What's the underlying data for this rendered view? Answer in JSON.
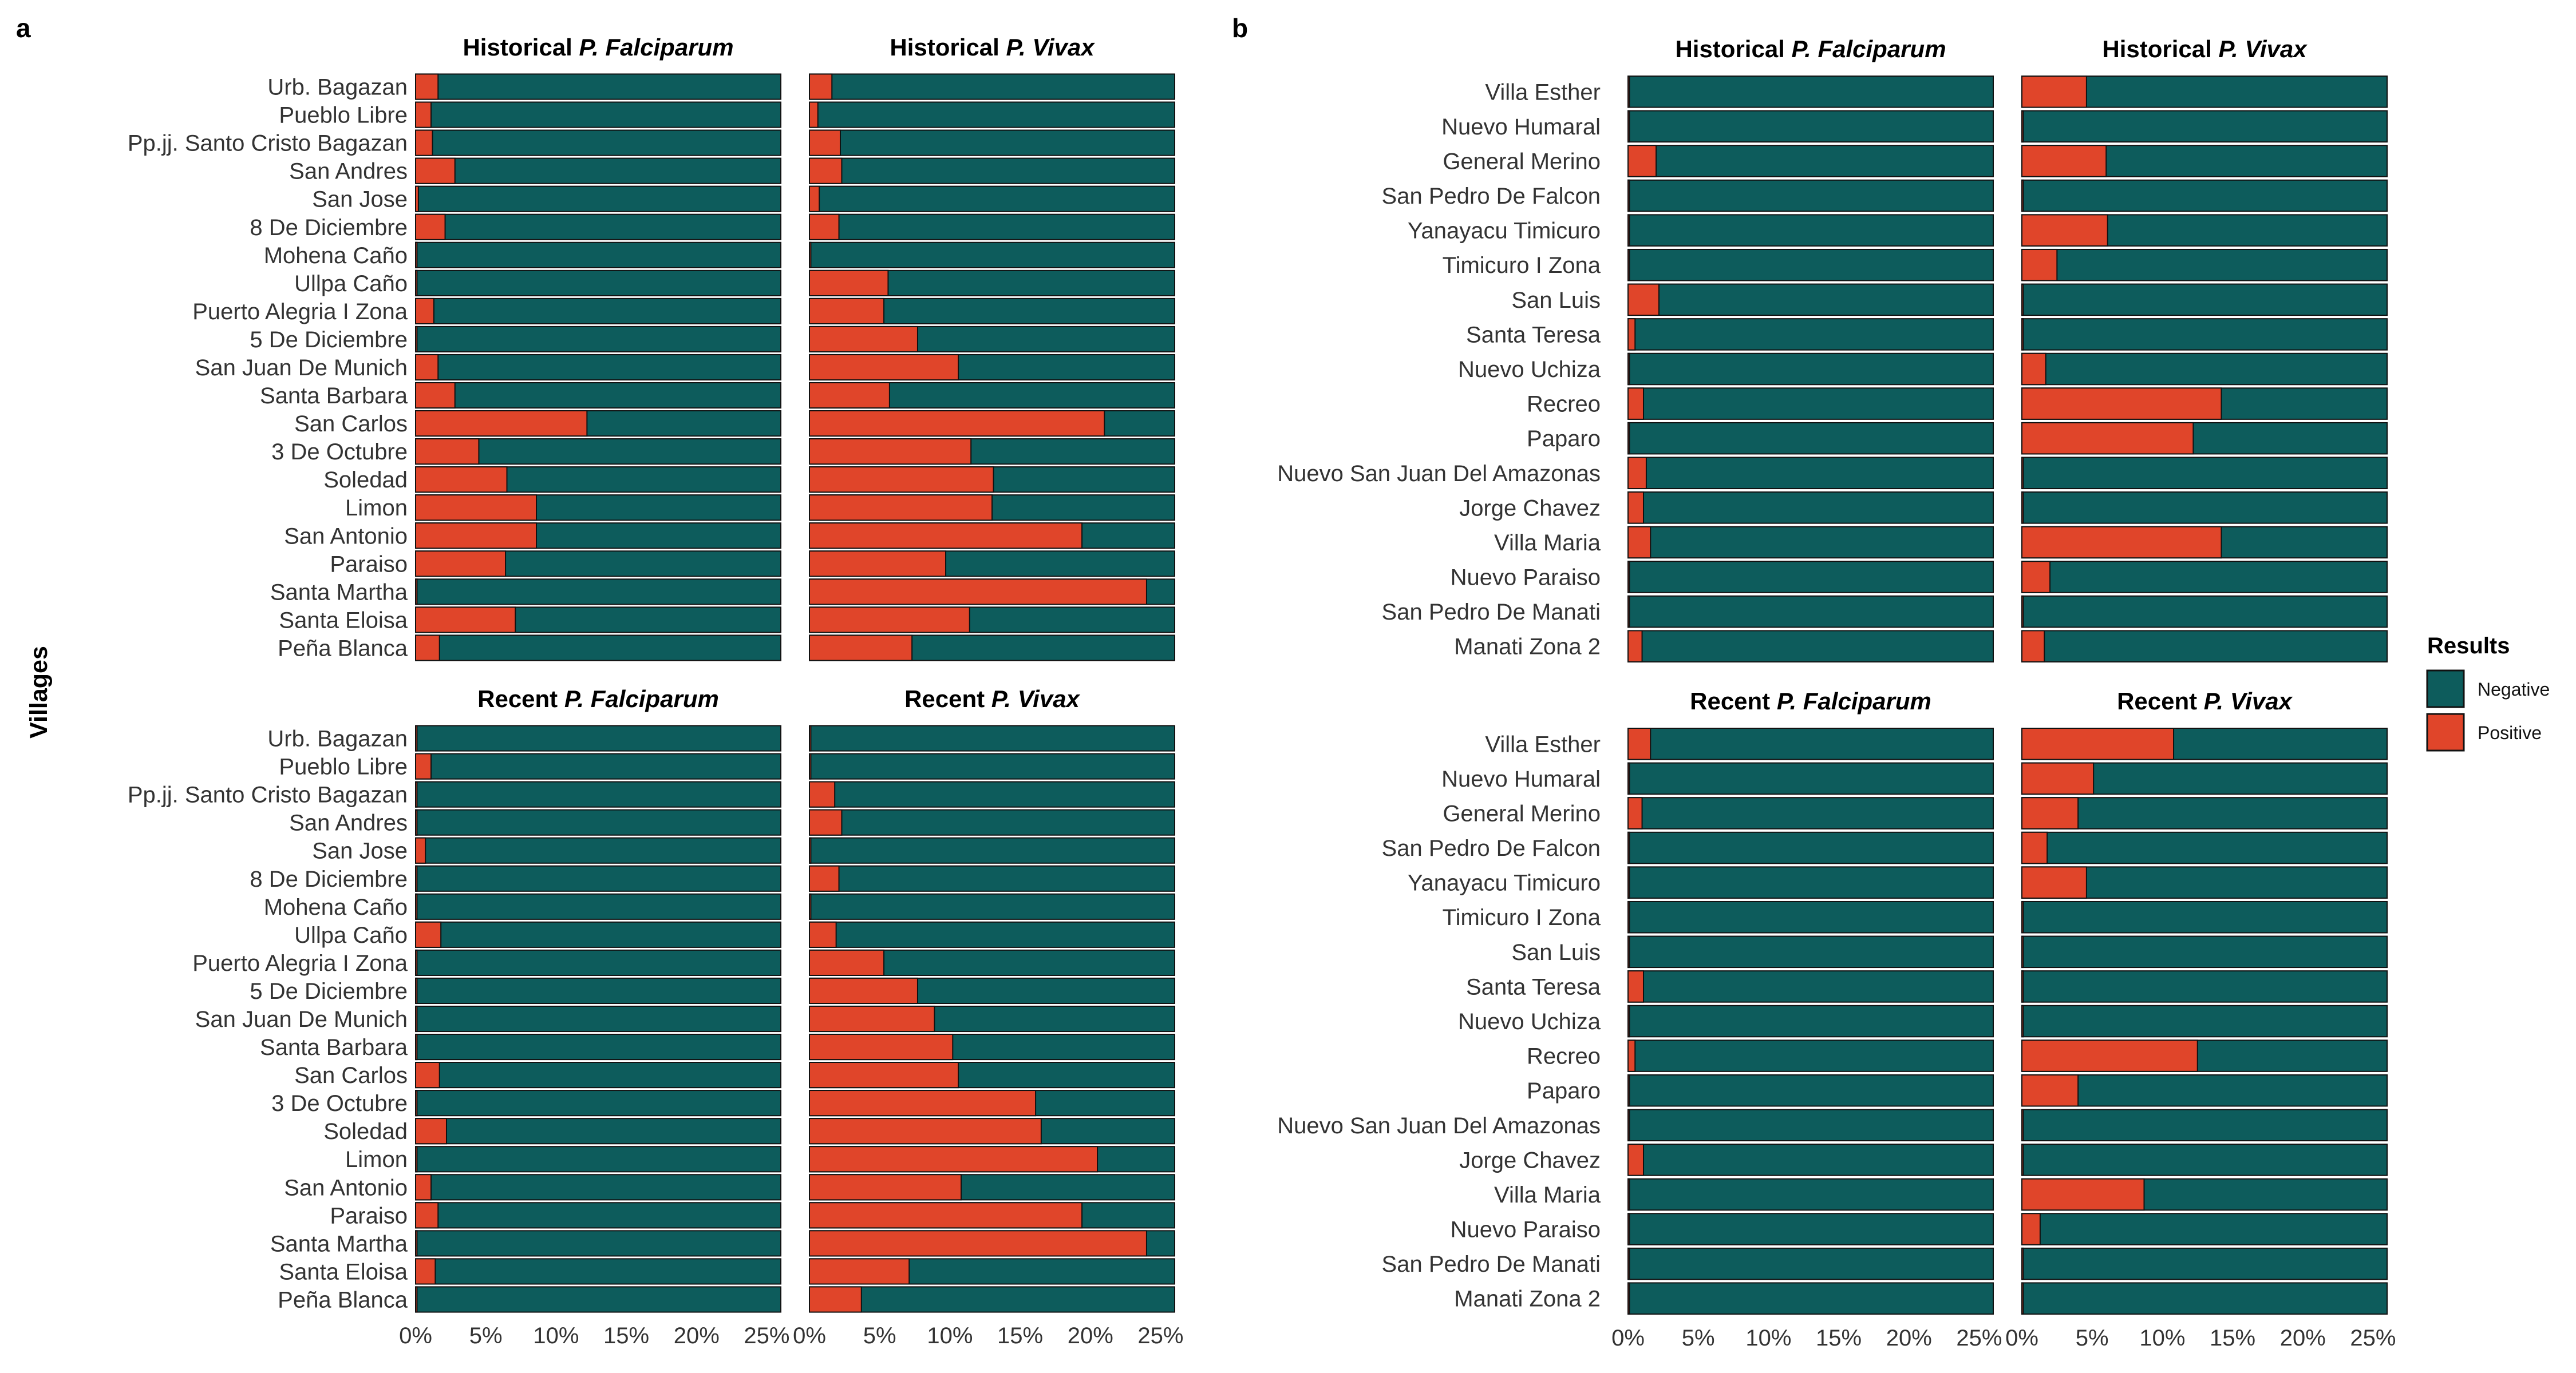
{
  "figure": {
    "y_axis_label": "Villages",
    "panel_a_tag": "a",
    "panel_b_tag": "b",
    "legend_title": "Results",
    "legend_items": [
      {
        "label": "Negative",
        "color": "#0D5C5C"
      },
      {
        "label": "Positive",
        "color": "#E0452A"
      }
    ],
    "colors": {
      "negative": "#0D5C5C",
      "positive": "#E0452A",
      "outline": "#111111"
    }
  },
  "chart_data": [
    {
      "type": "bar",
      "orientation": "horizontal",
      "stacked_to": "100%",
      "panel": "a",
      "xlim": [
        0,
        26
      ],
      "x_ticks": [
        "0%",
        "5%",
        "10%",
        "15%",
        "20%",
        "25%"
      ],
      "x_tick_values": [
        0,
        5,
        10,
        15,
        20,
        25
      ],
      "categories": [
        "Urb. Bagazan",
        "Pueblo Libre",
        "Pp.jj. Santo Cristo Bagazan",
        "San Andres",
        "San Jose",
        "8 De Diciembre",
        "Mohena Caño",
        "Ullpa Caño",
        "Puerto Alegria I Zona",
        "5 De Diciembre",
        "San Juan De Munich",
        "Santa Barbara",
        "San Carlos",
        "3 De Octubre",
        "Soledad",
        "Limon",
        "San Antonio",
        "Paraiso",
        "Santa Martha",
        "Santa Eloisa",
        "Peña Blanca"
      ],
      "facets": [
        {
          "title_prefix": "Historical",
          "title_species": "P. Falciparum",
          "positive_pct": [
            1.6,
            1.1,
            1.2,
            2.8,
            0.2,
            2.1,
            0.1,
            0.1,
            1.3,
            0.1,
            1.6,
            2.8,
            12.2,
            4.5,
            6.5,
            8.6,
            8.6,
            6.4,
            0.1,
            7.1,
            1.7
          ]
        },
        {
          "title_prefix": "Historical",
          "title_species": "P. Vivax",
          "positive_pct": [
            1.6,
            0.6,
            2.2,
            2.3,
            0.7,
            2.1,
            0.1,
            5.6,
            5.3,
            7.7,
            10.6,
            5.7,
            21.0,
            11.5,
            13.1,
            13.0,
            19.4,
            9.7,
            24.0,
            11.4,
            7.3
          ]
        },
        {
          "title_prefix": "Recent",
          "title_species": "P. Falciparum",
          "positive_pct": [
            0.1,
            1.1,
            0.1,
            0.1,
            0.7,
            0.1,
            0.1,
            1.8,
            0.1,
            0.1,
            0.1,
            0.1,
            1.7,
            0.1,
            2.2,
            0.1,
            1.1,
            1.6,
            0.1,
            1.4,
            0.1
          ]
        },
        {
          "title_prefix": "Recent",
          "title_species": "P. Vivax",
          "positive_pct": [
            0.1,
            0.1,
            1.8,
            2.3,
            0.1,
            2.1,
            0.1,
            1.9,
            5.3,
            7.7,
            8.9,
            10.2,
            10.6,
            16.1,
            16.5,
            20.5,
            10.8,
            19.4,
            24.0,
            7.1,
            3.7
          ]
        }
      ]
    },
    {
      "type": "bar",
      "orientation": "horizontal",
      "stacked_to": "100%",
      "panel": "b",
      "xlim": [
        0,
        26
      ],
      "x_ticks": [
        "0%",
        "5%",
        "10%",
        "15%",
        "20%",
        "25%"
      ],
      "x_tick_values": [
        0,
        5,
        10,
        15,
        20,
        25
      ],
      "categories": [
        "Villa Esther",
        "Nuevo Humaral",
        "General Merino",
        "San Pedro De Falcon",
        "Yanayacu Timicuro",
        "Timicuro I Zona",
        "San Luis",
        "Santa Teresa",
        "Nuevo Uchiza",
        "Recreo",
        "Paparo",
        "Nuevo San Juan Del Amazonas",
        "Jorge Chavez",
        "Villa Maria",
        "Nuevo Paraiso",
        "San Pedro De Manati",
        "Manati Zona 2"
      ],
      "facets": [
        {
          "title_prefix": "Historical",
          "title_species": "P. Falciparum",
          "positive_pct": [
            0.1,
            0.1,
            2.0,
            0.1,
            0.1,
            0.1,
            2.2,
            0.5,
            0.1,
            1.1,
            0.1,
            1.3,
            1.1,
            1.6,
            0.1,
            0.1,
            1.0
          ]
        },
        {
          "title_prefix": "Historical",
          "title_species": "P. Vivax",
          "positive_pct": [
            4.6,
            0.1,
            6.0,
            0.1,
            6.1,
            2.5,
            0.1,
            0.1,
            1.7,
            14.2,
            12.2,
            0.1,
            0.1,
            14.2,
            2.0,
            0.1,
            1.6
          ]
        },
        {
          "title_prefix": "Recent",
          "title_species": "P. Falciparum",
          "positive_pct": [
            1.6,
            0.1,
            1.0,
            0.1,
            0.1,
            0.1,
            0.1,
            1.1,
            0.1,
            0.5,
            0.1,
            0.1,
            1.1,
            0.1,
            0.1,
            0.1,
            0.1
          ]
        },
        {
          "title_prefix": "Recent",
          "title_species": "P. Vivax",
          "positive_pct": [
            10.8,
            5.1,
            4.0,
            1.8,
            4.6,
            0.1,
            0.1,
            0.1,
            0.1,
            12.5,
            4.0,
            0.1,
            0.1,
            8.7,
            1.3,
            0.1,
            0.1
          ]
        }
      ]
    }
  ]
}
